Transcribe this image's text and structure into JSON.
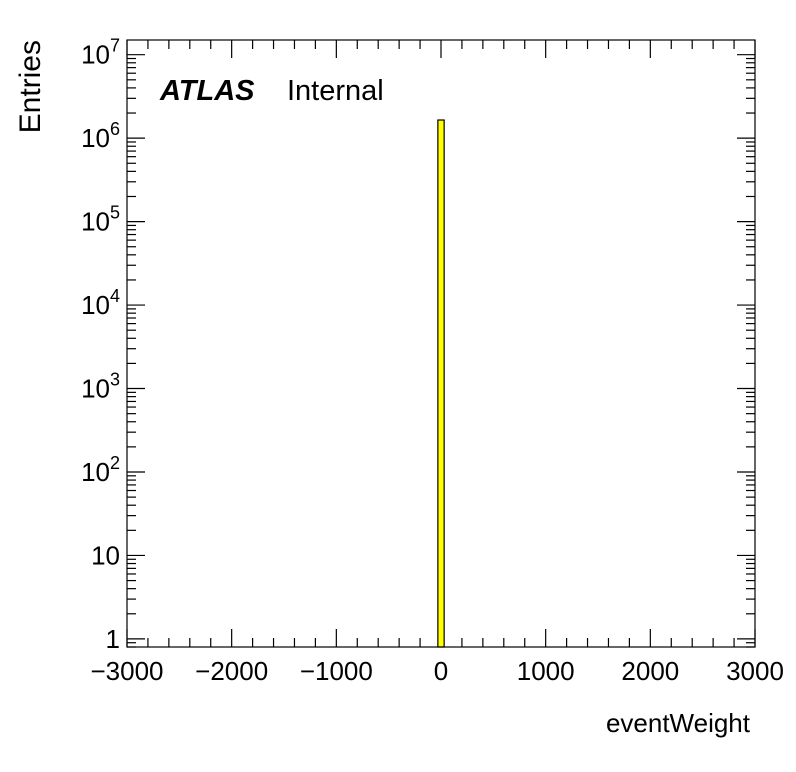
{
  "chart_data": {
    "type": "bar",
    "title": "",
    "xlabel": "eventWeight",
    "ylabel": "Entries",
    "xlim": [
      -3000,
      3000
    ],
    "ylim": [
      0.8,
      15000000
    ],
    "log_y": true,
    "grid": false,
    "bin_width": 60,
    "fill_color": "#ffff00",
    "edge_color": "#000000",
    "x_ticks": [
      {
        "value": -3000,
        "label": "−3000"
      },
      {
        "value": -2000,
        "label": "−2000"
      },
      {
        "value": -1000,
        "label": "−1000"
      },
      {
        "value": 0,
        "label": "0"
      },
      {
        "value": 1000,
        "label": "1000"
      },
      {
        "value": 2000,
        "label": "2000"
      },
      {
        "value": 3000,
        "label": "3000"
      }
    ],
    "y_ticks": [
      {
        "value": 1,
        "base": "1",
        "exp": ""
      },
      {
        "value": 10,
        "base": "10",
        "exp": ""
      },
      {
        "value": 100,
        "base": "10",
        "exp": "2"
      },
      {
        "value": 1000,
        "base": "10",
        "exp": "3"
      },
      {
        "value": 10000,
        "base": "10",
        "exp": "4"
      },
      {
        "value": 100000,
        "base": "10",
        "exp": "5"
      },
      {
        "value": 1000000,
        "base": "10",
        "exp": "6"
      },
      {
        "value": 10000000,
        "base": "10",
        "exp": "7"
      }
    ],
    "bars": [
      {
        "x": 0,
        "value": 1650000
      }
    ],
    "annotations": {
      "experiment": "ATLAS",
      "status": "Internal"
    }
  }
}
